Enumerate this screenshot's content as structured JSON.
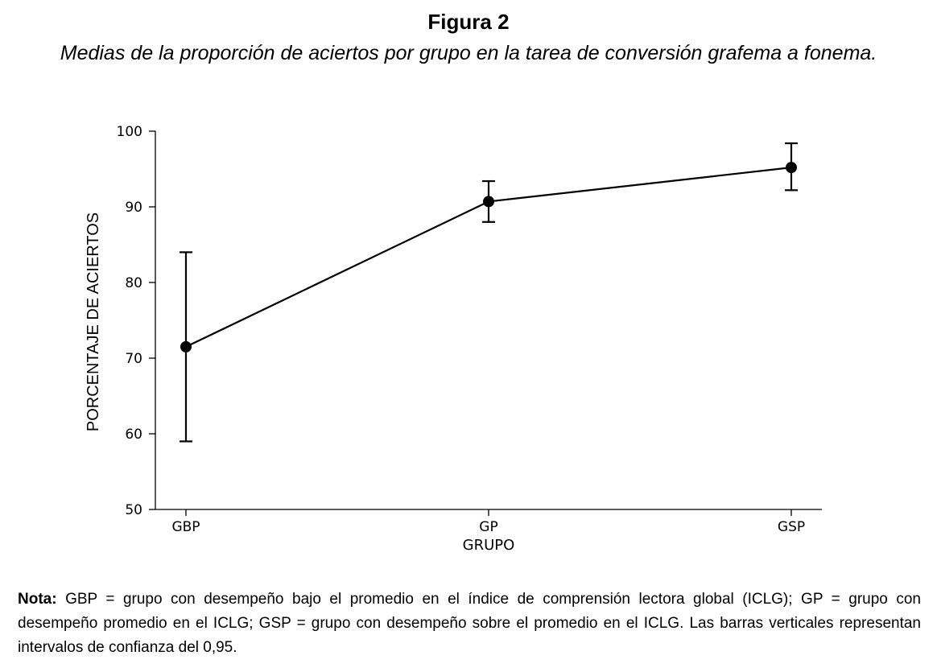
{
  "figure": {
    "label": "Figura 2",
    "title": "Medias de la proporción de aciertos por grupo en la tarea de conversión grafema a fonema."
  },
  "chart_data": {
    "type": "line",
    "xlabel": "GRUPO",
    "ylabel": "PORCENTAJE DE ACIERTOS",
    "categories": [
      "GBP",
      "GP",
      "GSP"
    ],
    "values": [
      71.5,
      90.7,
      95.2
    ],
    "error_low": [
      59.0,
      88.0,
      92.2
    ],
    "error_high": [
      84.0,
      93.4,
      98.4
    ],
    "ylim": [
      50,
      100
    ],
    "yticks": [
      50,
      60,
      70,
      80,
      90,
      100
    ],
    "grid": false,
    "color": "#000000"
  },
  "note": {
    "label": "Nota:",
    "text": " GBP = grupo con desempeño bajo el promedio en el índice de comprensión lectora global (ICLG); GP = grupo con desempeño promedio en el ICLG; GSP = grupo con desempeño sobre el promedio en el ICLG. Las barras verticales representan intervalos de confianza del 0,95."
  }
}
